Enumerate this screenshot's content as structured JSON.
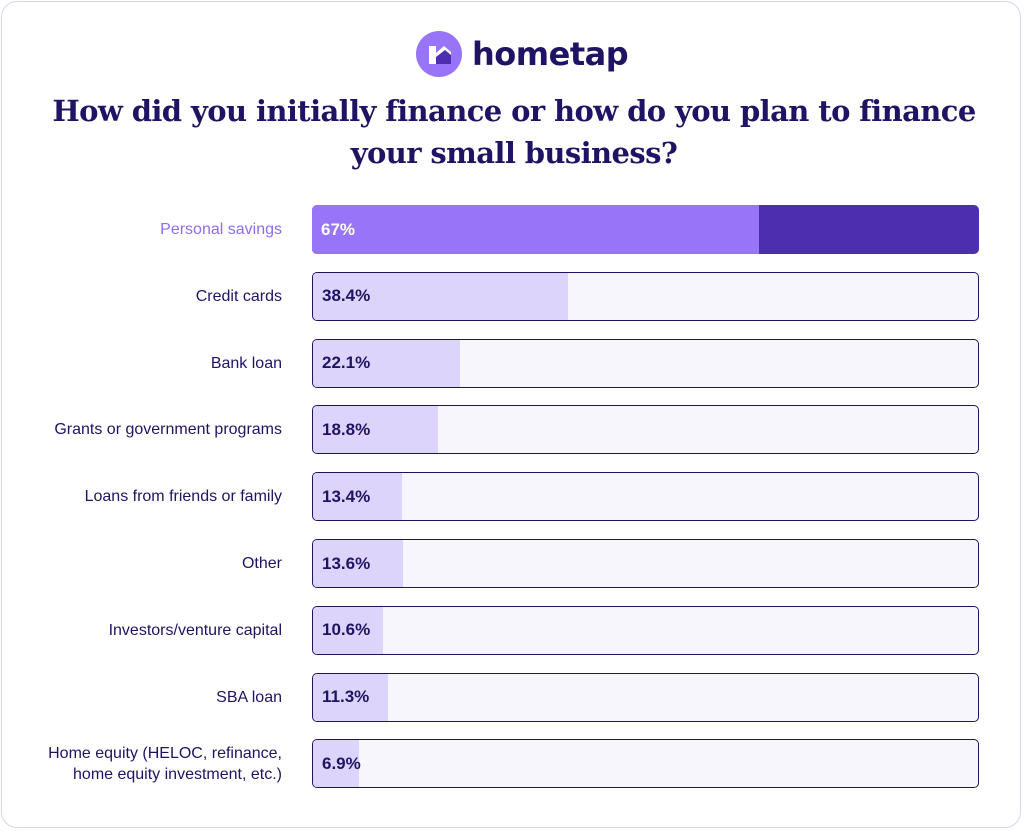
{
  "brand": {
    "name": "hometap"
  },
  "colors": {
    "navy": "#1f1464",
    "highlight_fill": "#9774f8",
    "highlight_track": "#4c2fae",
    "bar_fill": "#ddd4fb",
    "track": "#f8f6fd"
  },
  "chart_data": {
    "type": "bar",
    "orientation": "horizontal",
    "title": "How did you initially finance or how do you plan to finance your small business?",
    "xlim": [
      0,
      100
    ],
    "categories": [
      "Personal savings",
      "Credit cards",
      "Bank loan",
      "Grants or government programs",
      "Loans from friends or family",
      "Other",
      "Investors/venture capital",
      "SBA loan",
      "Home equity (HELOC, refinance, home equity investment, etc.)"
    ],
    "values": [
      67,
      38.4,
      22.1,
      18.8,
      13.4,
      13.6,
      10.6,
      11.3,
      6.9
    ],
    "value_labels": [
      "67%",
      "38.4%",
      "22.1%",
      "18.8%",
      "13.4%",
      "13.6%",
      "10.6%",
      "11.3%",
      "6.9%"
    ],
    "highlighted": "Personal savings"
  }
}
